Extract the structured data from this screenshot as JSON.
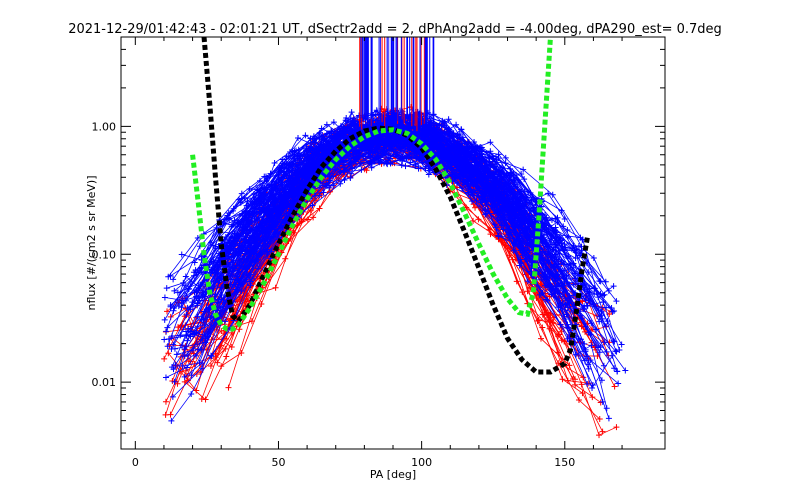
{
  "chart_data": {
    "type": "line",
    "title": "2021-12-29/01:42:43 - 02:01:21 UT, dSectr2add = 2, dPhAng2add = -4.00deg, dPA290_est=   0.7deg",
    "xlabel": "PA [deg]",
    "ylabel": "nflux [#/(cm2 s sr MeV)]",
    "xlim": [
      -5,
      185
    ],
    "ylim": [
      0.003,
      5.0
    ],
    "yscale": "log",
    "x_ticks": [
      0,
      50,
      100,
      150
    ],
    "x_tick_labels": [
      "0",
      "50",
      "100",
      "150"
    ],
    "y_ticks": [
      0.01,
      0.1,
      1.0
    ],
    "y_tick_labels": [
      "0.01",
      "0.10",
      "1.00"
    ],
    "grid": false,
    "colors": {
      "blue": "#0000ff",
      "red": "#ff0000",
      "black": "#000000",
      "green": "#22ee22"
    },
    "series": [
      {
        "style": "thick-dashed",
        "color": "black",
        "x": [
          24,
          26,
          28,
          30,
          32,
          34,
          36,
          40,
          45,
          50,
          55,
          60,
          65,
          70,
          75,
          80,
          85,
          90,
          95,
          100,
          105,
          110,
          115,
          120,
          125,
          130,
          135,
          140,
          145,
          150,
          152,
          154,
          156,
          158
        ],
        "y": [
          5.0,
          1.5,
          0.4,
          0.12,
          0.055,
          0.033,
          0.03,
          0.04,
          0.07,
          0.12,
          0.2,
          0.32,
          0.48,
          0.64,
          0.8,
          0.92,
          0.97,
          0.95,
          0.85,
          0.68,
          0.46,
          0.28,
          0.15,
          0.078,
          0.04,
          0.022,
          0.015,
          0.012,
          0.012,
          0.014,
          0.018,
          0.035,
          0.075,
          0.14
        ]
      },
      {
        "style": "thick-dashed",
        "color": "green",
        "x": [
          20,
          22,
          24,
          26,
          28,
          30,
          32,
          34,
          36,
          40,
          45,
          50,
          55,
          60,
          65,
          70,
          75,
          80,
          85,
          90,
          95,
          100,
          105,
          110,
          115,
          120,
          125,
          130,
          134,
          137,
          139,
          141,
          143,
          145
        ],
        "y": [
          0.6,
          0.25,
          0.1,
          0.05,
          0.034,
          0.028,
          0.026,
          0.026,
          0.028,
          0.038,
          0.06,
          0.1,
          0.17,
          0.27,
          0.4,
          0.55,
          0.7,
          0.83,
          0.92,
          0.94,
          0.88,
          0.73,
          0.55,
          0.36,
          0.21,
          0.12,
          0.07,
          0.045,
          0.035,
          0.034,
          0.05,
          0.2,
          1.0,
          5.0
        ]
      }
    ],
    "annotations": [
      "dense blue (+) and red (+) per-sector flux curves forming a peak near PA 90 deg; vertical blue/red bars clipped at top near PA 78-105 deg"
    ]
  }
}
